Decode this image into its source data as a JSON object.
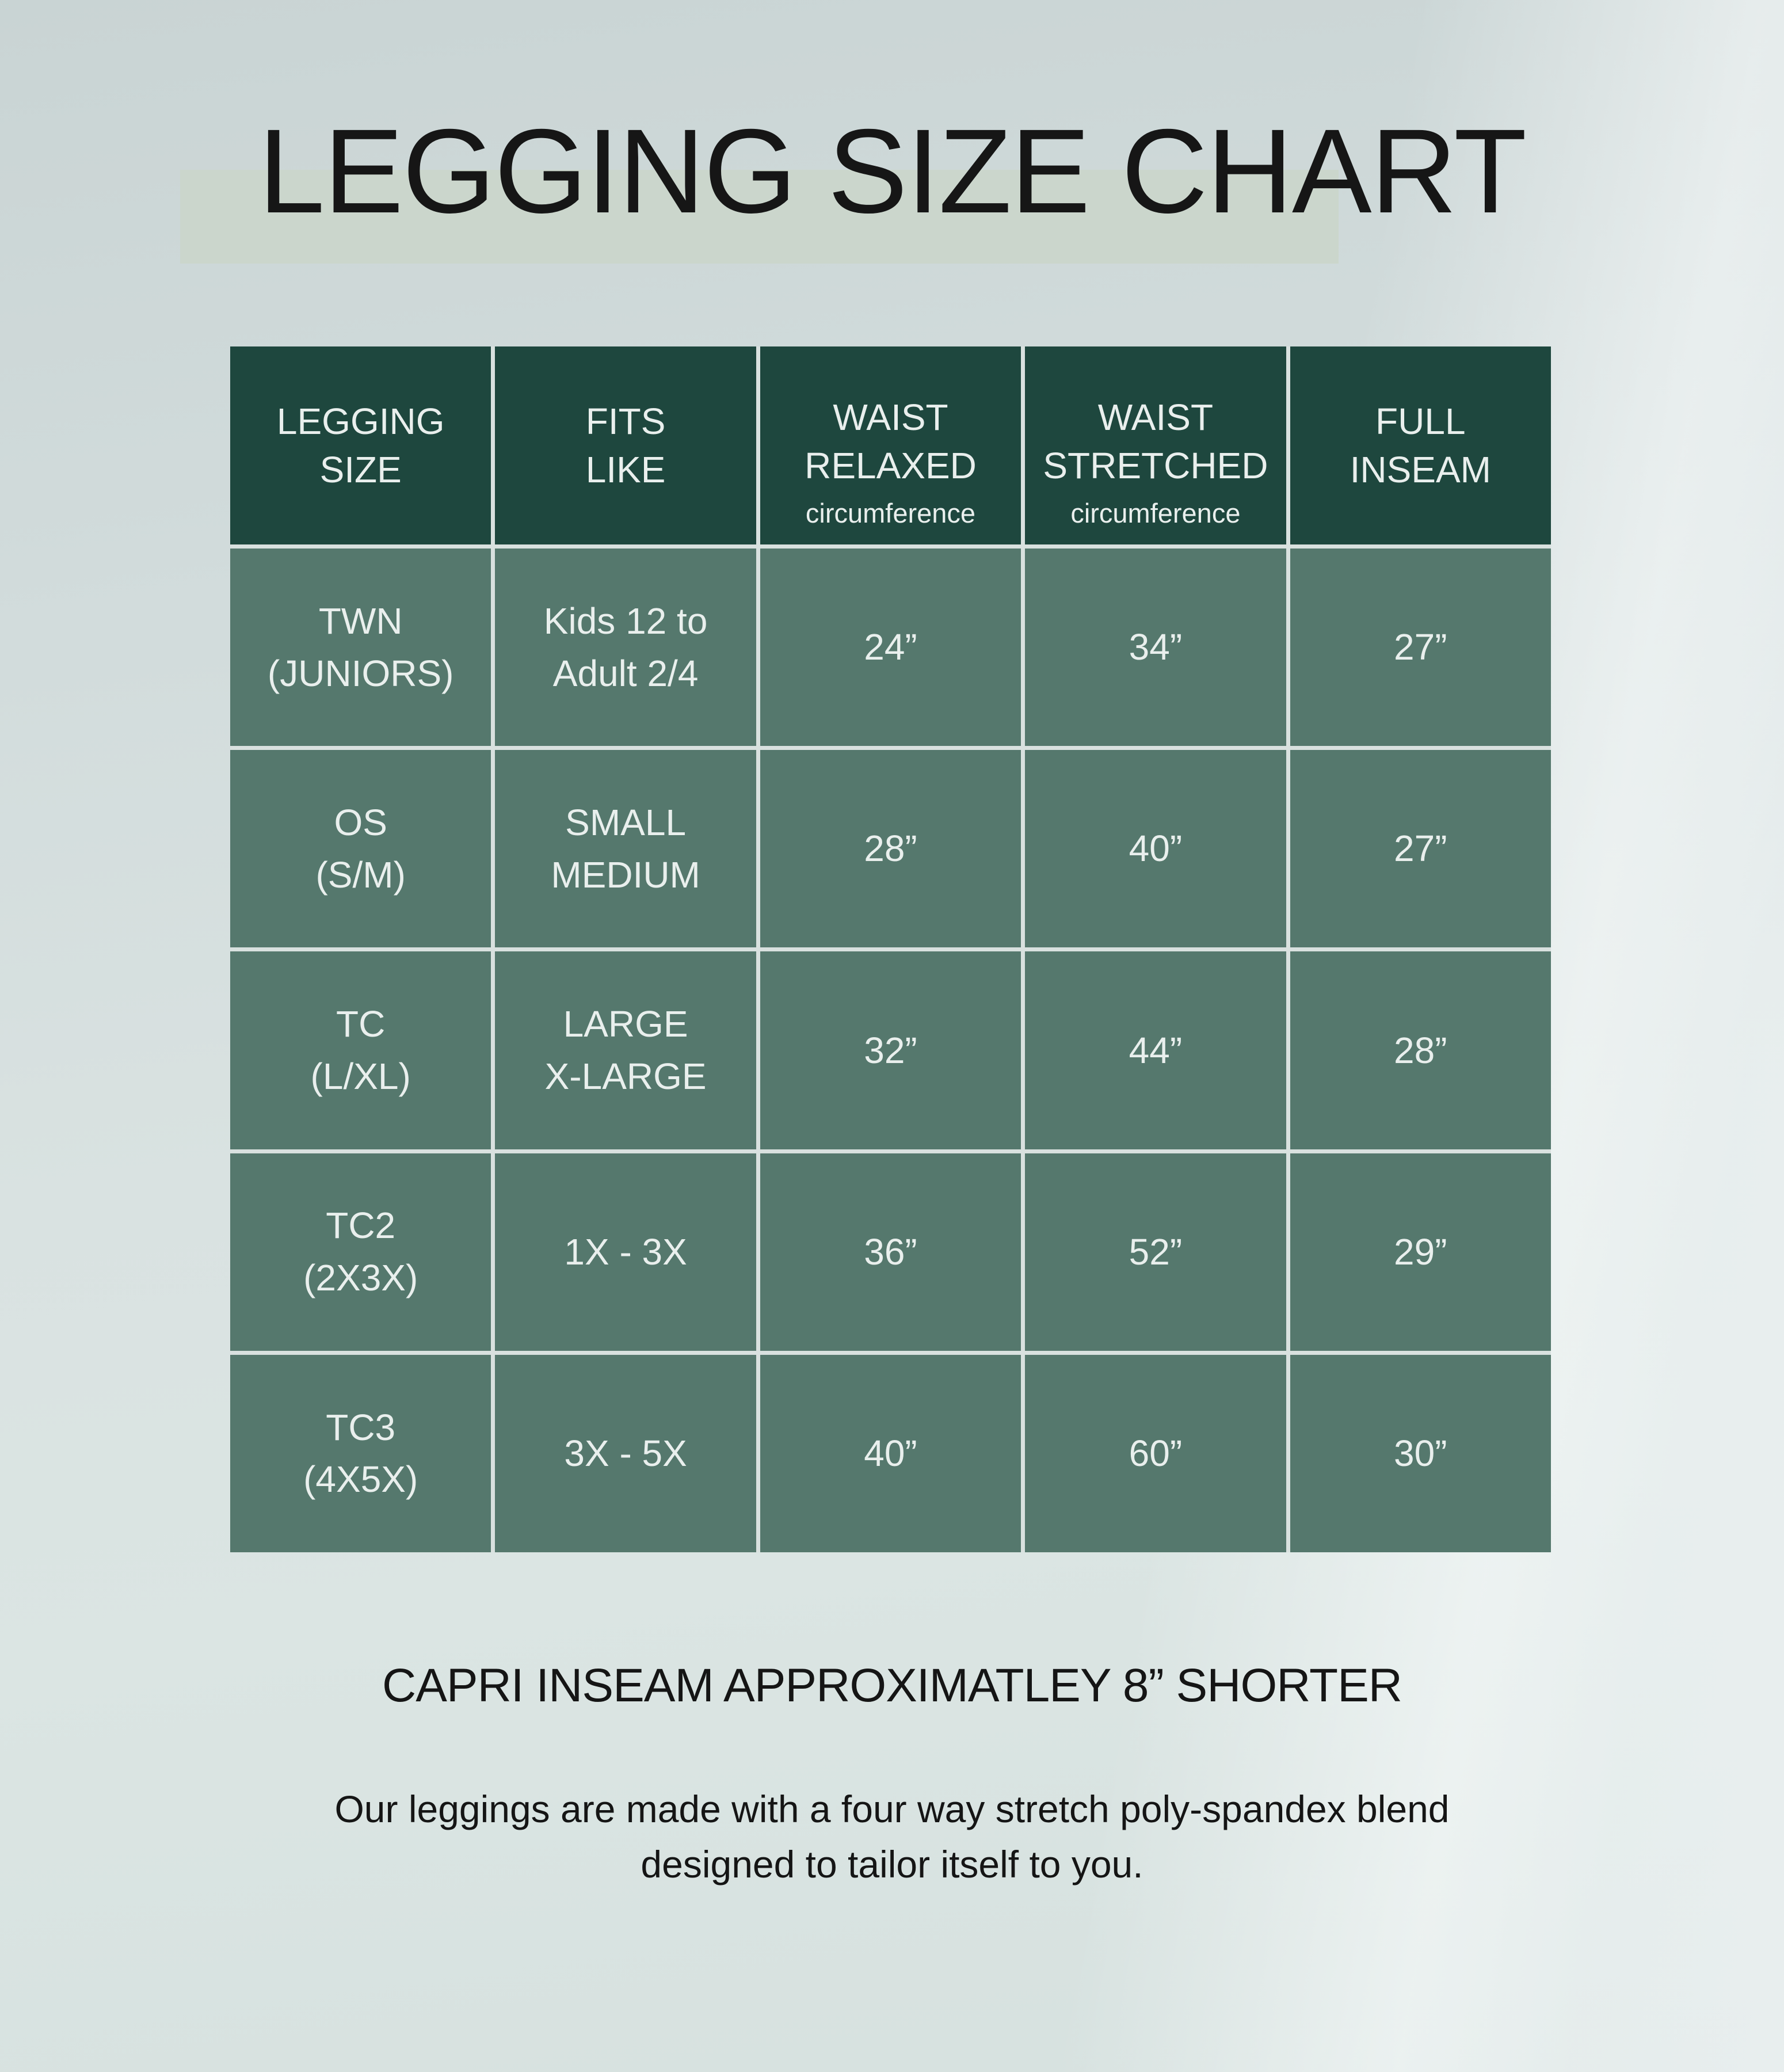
{
  "title": "LEGGING SIZE CHART",
  "table": {
    "headers": [
      {
        "line1": "LEGGING",
        "line2": "SIZE",
        "sub": ""
      },
      {
        "line1": "FITS",
        "line2": "LIKE",
        "sub": ""
      },
      {
        "line1": "WAIST",
        "line2": "RELAXED",
        "sub": "circumference"
      },
      {
        "line1": "WAIST",
        "line2": "STRETCHED",
        "sub": "circumference"
      },
      {
        "line1": "FULL",
        "line2": "INSEAM",
        "sub": ""
      }
    ],
    "rows": [
      {
        "size1": "TWN",
        "size2": "(JUNIORS)",
        "fits1": "Kids 12 to",
        "fits2": "Adult 2/4",
        "waist_relaxed": "24”",
        "waist_stretched": "34”",
        "full_inseam": "27”"
      },
      {
        "size1": "OS",
        "size2": "(S/M)",
        "fits1": "SMALL",
        "fits2": "MEDIUM",
        "waist_relaxed": "28”",
        "waist_stretched": "40”",
        "full_inseam": "27”"
      },
      {
        "size1": "TC",
        "size2": "(L/XL)",
        "fits1": "LARGE",
        "fits2": "X-LARGE",
        "waist_relaxed": "32”",
        "waist_stretched": "44”",
        "full_inseam": "28”"
      },
      {
        "size1": "TC2",
        "size2": "(2X3X)",
        "fits1": "1X - 3X",
        "fits2": "",
        "waist_relaxed": "36”",
        "waist_stretched": "52”",
        "full_inseam": "29”"
      },
      {
        "size1": "TC3",
        "size2": "(4X5X)",
        "fits1": "3X - 5X",
        "fits2": "",
        "waist_relaxed": "40”",
        "waist_stretched": "60”",
        "full_inseam": "30”"
      }
    ]
  },
  "footer": {
    "capri_note": "CAPRI INSEAM APPROXIMATLEY 8” SHORTER",
    "description_line1": "Our leggings are made with a four way stretch poly-spandex blend",
    "description_line2": "designed to tailor itself to you."
  },
  "colors": {
    "header_green": "#1e473e",
    "body_green": "#55786d",
    "divider": "#d9e1df",
    "table_text": "#e9efed",
    "title_highlight": "#cbd6cc",
    "background_top": "#c9d4d4",
    "background_mid": "#d9e2e1",
    "background_streak": "#eef0f1",
    "ink": "#151515"
  }
}
